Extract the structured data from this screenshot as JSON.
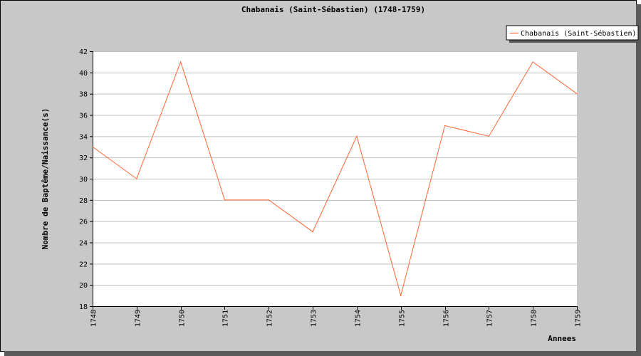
{
  "chart_data": {
    "type": "line",
    "title": "Chabanais (Saint-Sébastien) (1748-1759)",
    "xlabel": "Annees",
    "ylabel": "Nombre de Baptême/Naissance(s)",
    "x": [
      "1748",
      "1749",
      "1750",
      "1751",
      "1752",
      "1753",
      "1754",
      "1755",
      "1756",
      "1757",
      "1758",
      "1759"
    ],
    "series": [
      {
        "name": "Chabanais (Saint-Sébastien)",
        "values": [
          33,
          30,
          41,
          28,
          28,
          25,
          34,
          19,
          35,
          34,
          41,
          38
        ]
      }
    ],
    "ylim": [
      18,
      42
    ],
    "yticks": [
      18,
      20,
      22,
      24,
      26,
      28,
      30,
      32,
      34,
      36,
      38,
      40,
      42
    ],
    "grid": true,
    "legend_position": "top-right",
    "colors": {
      "line": "#ff6633",
      "background": "#c8c8c8",
      "plot": "#ffffff",
      "grid": "#c0c0c0",
      "shadow": "#5a5a5a"
    }
  }
}
